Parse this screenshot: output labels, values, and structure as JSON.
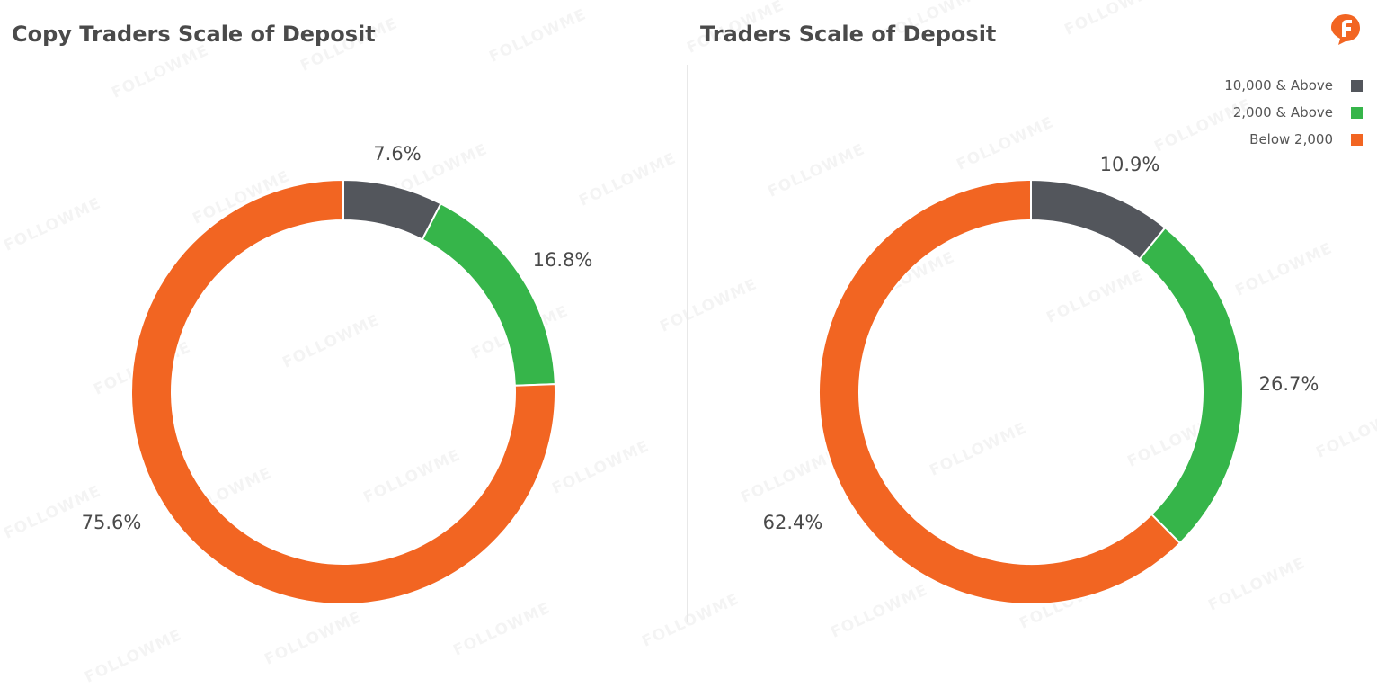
{
  "colors": {
    "above_10000": "#53565c",
    "above_2000": "#36b54a",
    "below_2000": "#f26522"
  },
  "legend": [
    {
      "label": "10,000 & Above",
      "color": "#53565c"
    },
    {
      "label": "2,000 & Above",
      "color": "#36b54a"
    },
    {
      "label": "Below 2,000",
      "color": "#f26522"
    }
  ],
  "watermark_text": "FOLLOWME",
  "logo": {
    "icon": "followme-logo-icon"
  },
  "chart_data": [
    {
      "type": "pie",
      "style": "donut",
      "title": "Copy Traders Scale of Deposit",
      "categories": [
        "10,000 & Above",
        "2,000 & Above",
        "Below 2,000"
      ],
      "values": [
        7.6,
        16.8,
        75.6
      ],
      "labels": [
        "7.6%",
        "16.8%",
        "75.6%"
      ],
      "start": "12 o'clock, clockwise"
    },
    {
      "type": "pie",
      "style": "donut",
      "title": "Traders Scale of Deposit",
      "categories": [
        "10,000 & Above",
        "2,000 & Above",
        "Below 2,000"
      ],
      "values": [
        10.9,
        26.7,
        62.4
      ],
      "labels": [
        "10.9%",
        "26.7%",
        "62.4%"
      ],
      "legend_position": "top-right",
      "start": "12 o'clock, clockwise"
    }
  ]
}
